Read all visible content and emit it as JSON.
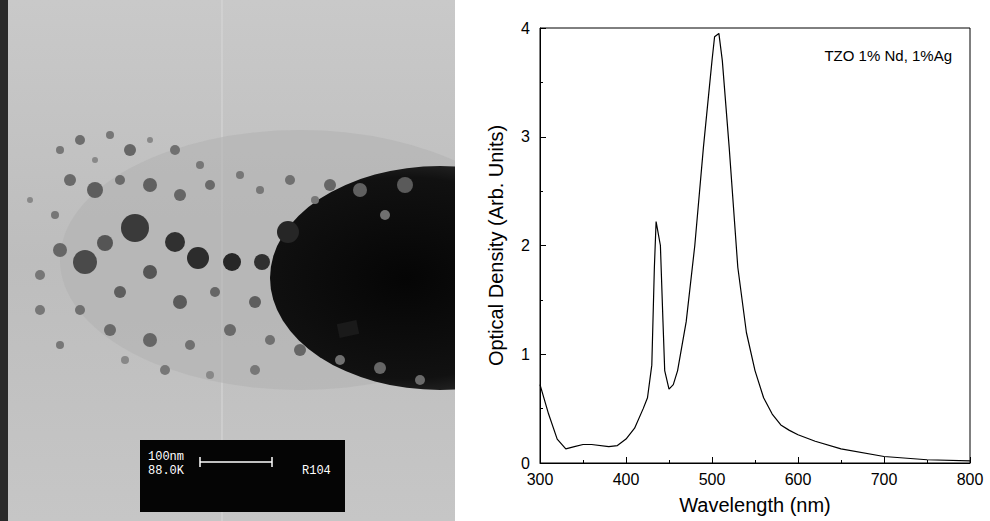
{
  "micrograph": {
    "scale_bar": "100nm",
    "magnification": "88.0K",
    "label": "R104"
  },
  "chart_data": {
    "type": "line",
    "annotation": "TZO 1% Nd, 1%Ag",
    "x_label": "Wavelength (nm)",
    "y_label": "Optical Density (Arb. Units)",
    "x": [
      300,
      310,
      320,
      330,
      340,
      350,
      360,
      380,
      390,
      400,
      410,
      420,
      425,
      430,
      433,
      435,
      440,
      443,
      445,
      450,
      455,
      460,
      470,
      480,
      490,
      500,
      503,
      508,
      512,
      520,
      530,
      540,
      550,
      560,
      570,
      580,
      590,
      600,
      620,
      650,
      700,
      750,
      800
    ],
    "values": [
      0.72,
      0.45,
      0.22,
      0.13,
      0.15,
      0.17,
      0.17,
      0.15,
      0.16,
      0.22,
      0.32,
      0.5,
      0.6,
      0.9,
      1.8,
      2.22,
      2.0,
      1.3,
      0.85,
      0.68,
      0.72,
      0.85,
      1.3,
      2.0,
      2.9,
      3.7,
      3.92,
      3.95,
      3.7,
      2.9,
      1.8,
      1.2,
      0.85,
      0.6,
      0.45,
      0.35,
      0.3,
      0.26,
      0.2,
      0.13,
      0.06,
      0.03,
      0.02
    ],
    "color": "#000000",
    "xlim": [
      300,
      800
    ],
    "xticks": [
      300,
      400,
      500,
      600,
      700,
      800
    ],
    "ylim": [
      0,
      4
    ],
    "yticks": [
      0,
      1,
      2,
      3,
      4
    ],
    "grid": false
  }
}
